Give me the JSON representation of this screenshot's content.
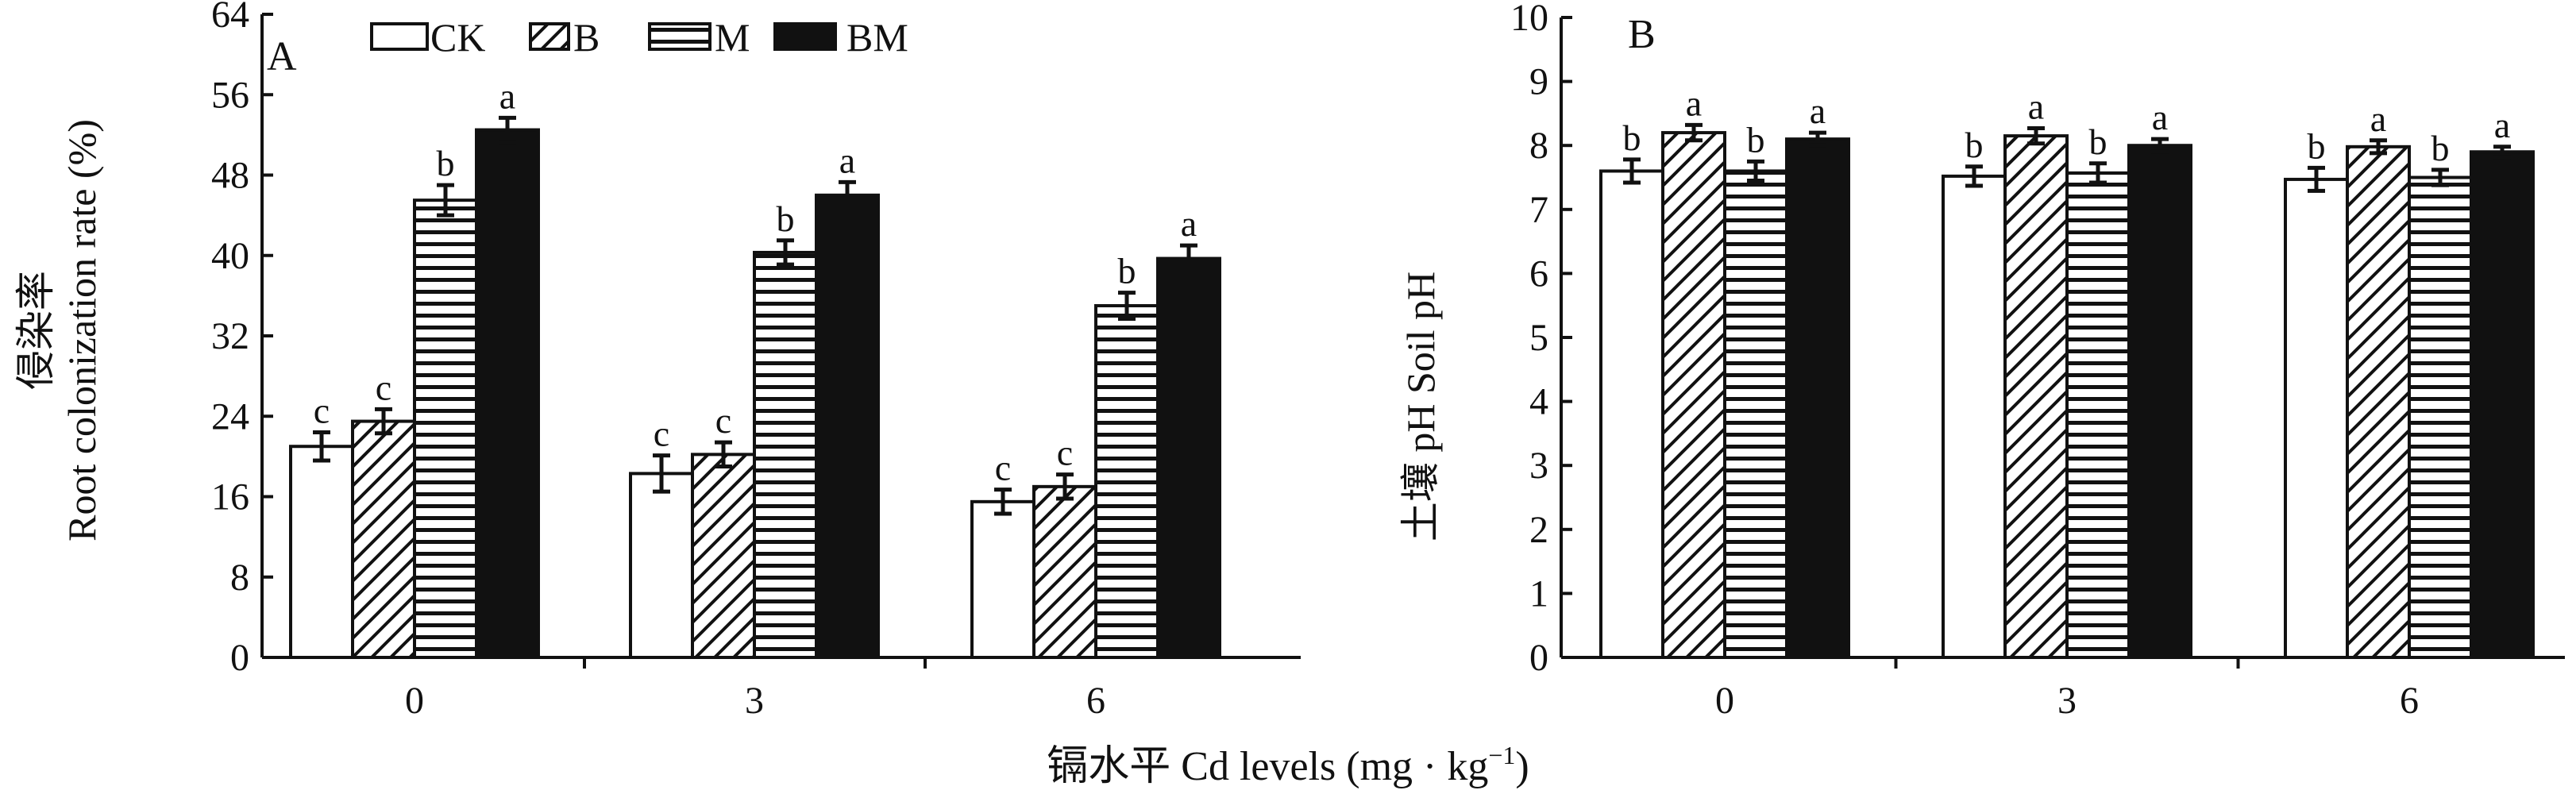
{
  "figure": {
    "x_axis_title": "镉水平 Cd levels (mg · kg",
    "x_axis_title_sup": "−1",
    "x_axis_title_close": ")"
  },
  "legend": [
    {
      "label": "CK",
      "pattern": "white"
    },
    {
      "label": "B",
      "pattern": "diagonal"
    },
    {
      "label": "M",
      "pattern": "horizontal"
    },
    {
      "label": "BM",
      "pattern": "black"
    }
  ],
  "chart_data": [
    {
      "type": "bar",
      "panel_label": "A",
      "categories": [
        "0",
        "3",
        "6"
      ],
      "ylabel_cn": "侵染率",
      "ylabel_en": "Root colonization rate (%)",
      "ylim": [
        0,
        64
      ],
      "yticks": [
        0,
        8,
        16,
        24,
        32,
        40,
        48,
        56,
        64
      ],
      "series": [
        {
          "name": "CK",
          "values": [
            21.0,
            18.3,
            15.5
          ],
          "errors": [
            1.4,
            1.8,
            1.2
          ],
          "letters": [
            "c",
            "c",
            "c"
          ]
        },
        {
          "name": "B",
          "values": [
            23.5,
            20.2,
            17.0
          ],
          "errors": [
            1.2,
            1.2,
            1.2
          ],
          "letters": [
            "c",
            "c",
            "c"
          ]
        },
        {
          "name": "M",
          "values": [
            45.5,
            40.3,
            35.0
          ],
          "errors": [
            1.5,
            1.2,
            1.3
          ],
          "letters": [
            "b",
            "b",
            "b"
          ]
        },
        {
          "name": "BM",
          "values": [
            52.5,
            46.0,
            39.7
          ],
          "errors": [
            1.2,
            1.3,
            1.3
          ],
          "letters": [
            "a",
            "a",
            "a"
          ]
        }
      ]
    },
    {
      "type": "bar",
      "panel_label": "B",
      "categories": [
        "0",
        "3",
        "6"
      ],
      "ylabel_cn": "土壤",
      "ylabel_en": "pH Soil pH",
      "ylim": [
        0,
        10
      ],
      "yticks": [
        0,
        1,
        2,
        3,
        4,
        5,
        6,
        7,
        8,
        9,
        10
      ],
      "series": [
        {
          "name": "CK",
          "values": [
            7.6,
            7.52,
            7.47
          ],
          "errors": [
            0.18,
            0.15,
            0.18
          ],
          "letters": [
            "b",
            "b",
            "b"
          ]
        },
        {
          "name": "B",
          "values": [
            8.2,
            8.15,
            7.98
          ],
          "errors": [
            0.12,
            0.12,
            0.1
          ],
          "letters": [
            "a",
            "a",
            "a"
          ]
        },
        {
          "name": "M",
          "values": [
            7.6,
            7.57,
            7.5
          ],
          "errors": [
            0.15,
            0.15,
            0.12
          ],
          "letters": [
            "b",
            "b",
            "b"
          ]
        },
        {
          "name": "BM",
          "values": [
            8.1,
            8.0,
            7.9
          ],
          "errors": [
            0.1,
            0.1,
            0.08
          ],
          "letters": [
            "a",
            "a",
            "a"
          ]
        }
      ]
    }
  ]
}
